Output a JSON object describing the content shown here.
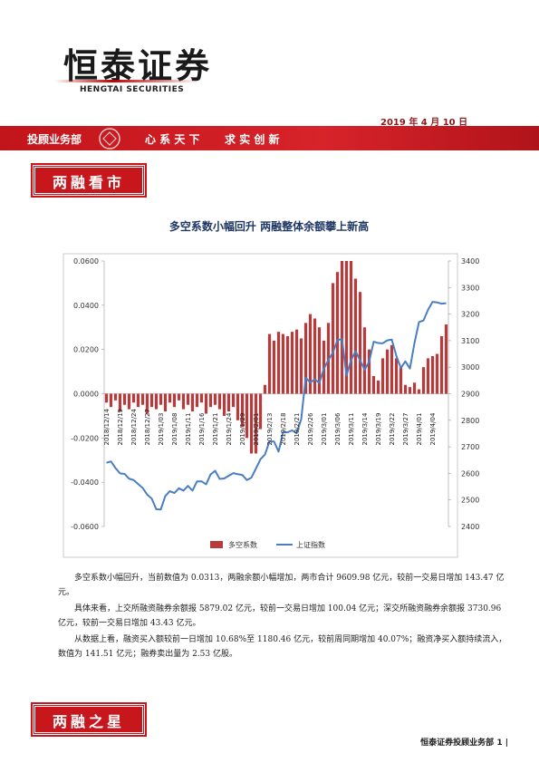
{
  "header": {
    "logo": "恒泰证券",
    "logo_en": "HENGTAI SECURITIES",
    "date": "2019 年 4 月 10 日",
    "department": "投顾业务部",
    "motto_1": "心 系 天 下",
    "motto_2": "求 实 创 新"
  },
  "sections": [
    "两融看市",
    "两融之星"
  ],
  "chart_data": {
    "type": "bar_line",
    "title": "多空系数小幅回升  两融整体余额攀上新高",
    "categories": [
      "2018/12/14",
      null,
      null,
      "2018/12/19",
      null,
      null,
      "2018/12/24",
      null,
      null,
      "2018/12/27",
      null,
      null,
      "2019/1/03",
      null,
      null,
      "2019/1/08",
      null,
      null,
      "2019/1/11",
      null,
      null,
      "2019/1/16",
      null,
      null,
      "2019/1/21",
      null,
      null,
      "2019/1/24",
      null,
      null,
      "2019/1/29",
      null,
      null,
      "2019/2/01",
      null,
      null,
      "2019/2/13",
      null,
      null,
      "2019/2/18",
      null,
      null,
      "2019/2/21",
      null,
      null,
      "2019/2/26",
      null,
      null,
      "2019/3/01",
      null,
      null,
      "2019/3/06",
      null,
      null,
      "2019/3/11",
      null,
      null,
      "2019/3/14",
      null,
      null,
      "2019/3/19",
      null,
      null,
      "2019/3/22",
      null,
      null,
      "2019/3/27",
      null,
      null,
      "2019/4/01",
      null,
      null,
      "2019/4/04",
      null,
      null,
      null
    ],
    "series": [
      {
        "name": "多空系数",
        "color": "#b83a3a",
        "axis": "y",
        "values": [
          -0.004,
          -0.006,
          -0.003,
          -0.008,
          -0.005,
          -0.007,
          -0.004,
          -0.006,
          -0.005,
          -0.009,
          -0.006,
          -0.007,
          -0.005,
          -0.008,
          -0.004,
          -0.006,
          -0.003,
          -0.007,
          -0.005,
          -0.008,
          -0.006,
          -0.004,
          -0.009,
          -0.006,
          -0.005,
          -0.007,
          -0.01,
          -0.008,
          -0.006,
          -0.012,
          -0.015,
          -0.02,
          -0.027,
          -0.027,
          -0.016,
          0.004,
          0.027,
          0.024,
          0.028,
          0.027,
          0.026,
          0.028,
          0.029,
          0.025,
          0.032,
          0.036,
          0.034,
          0.03,
          0.024,
          0.032,
          0.05,
          0.055,
          0.06,
          0.06,
          0.06,
          0.052,
          0.046,
          0.03,
          0.02,
          0.008,
          0.006,
          0.016,
          0.02,
          0.022,
          0.016,
          0.012,
          0.004,
          0.003,
          0.005,
          0.002,
          0.012,
          0.016,
          0.017,
          0.018,
          0.026,
          0.0313
        ]
      },
      {
        "name": "上证指数",
        "color": "#4a7ec2",
        "axis": "y2",
        "values": [
          2640,
          2645,
          2620,
          2600,
          2598,
          2580,
          2575,
          2560,
          2545,
          2520,
          2505,
          2465,
          2464,
          2515,
          2533,
          2526,
          2544,
          2535,
          2553,
          2535,
          2570,
          2570,
          2559,
          2596,
          2610,
          2579,
          2581,
          2591,
          2601,
          2597,
          2594,
          2575,
          2584,
          2618,
          2653,
          2671,
          2721,
          2720,
          2682,
          2755,
          2755,
          2762,
          2751,
          2804,
          2961,
          2942,
          2954,
          2941,
          2994,
          3027,
          3055,
          3102,
          3106,
          2969,
          3026,
          3060,
          3026,
          2990,
          3021,
          3096,
          3091,
          3090,
          3101,
          3104,
          3043,
          2997,
          3022,
          2995,
          3090,
          3170,
          3176,
          3216,
          3246,
          3244,
          3239,
          3241
        ]
      }
    ],
    "ylim": [
      -0.06,
      0.06
    ],
    "yticks": [
      {
        "value": -0.06,
        "label": "-0.0600"
      },
      {
        "value": -0.04,
        "label": "-0.0400"
      },
      {
        "value": -0.02,
        "label": "-0.0200"
      },
      {
        "value": 0,
        "label": "0.0000"
      },
      {
        "value": 0.02,
        "label": "0.0200"
      },
      {
        "value": 0.04,
        "label": "0.0400"
      },
      {
        "value": 0.06,
        "label": "0.0600"
      }
    ],
    "y2lim": [
      2400,
      3400
    ],
    "y2ticks": [
      2400,
      2500,
      2600,
      2700,
      2800,
      2900,
      3000,
      3100,
      3200,
      3300,
      3400
    ],
    "legend": "bottom"
  },
  "paragraphs": [
    "多空系数小幅回升，当前数值为 0.0313，两融余额小幅增加，两市合计 9609.98 亿元，较前一交易日增加 143.47 亿元。",
    "具体来看，上交所融资融券余额报 5879.02 亿元，较前一交易日增加 100.04 亿元；深交所融资融券余额报 3730.96 亿元，较前一交易日增加 43.43 亿元。",
    "从数据上看，融资买入额较前一日增加 10.68%至 1180.46 亿元，较前周同期增加 40.07%；融资净买入额持续流入，数值为 141.51 亿元；融券卖出量为 2.53 亿股。"
  ],
  "footer": {
    "text": "恒泰证券投顾业务部",
    "page": "1"
  }
}
